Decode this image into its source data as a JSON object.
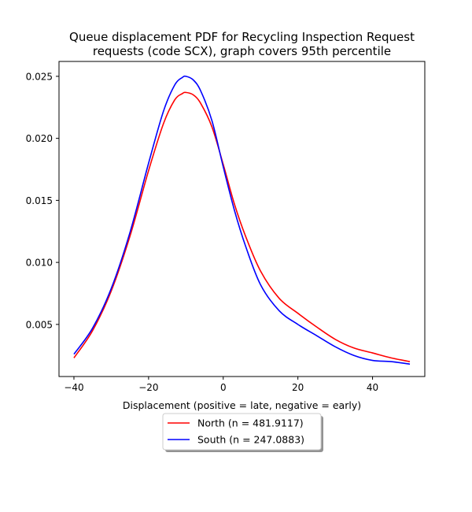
{
  "chart_data": {
    "type": "line",
    "title_line1": "Queue displacement PDF for Recycling Inspection Request",
    "title_line2": "requests (code SCX), graph covers 95th percentile",
    "xlabel": "Displacement (positive = late, negative = early)",
    "ylabel": "",
    "xlim": [
      -44,
      54
    ],
    "ylim": [
      0.0008,
      0.0262
    ],
    "x_ticks": [
      -40,
      -20,
      0,
      20,
      40
    ],
    "x_tick_labels": [
      "−40",
      "−20",
      "0",
      "20",
      "40"
    ],
    "y_ticks": [
      0.005,
      0.01,
      0.015,
      0.02,
      0.025
    ],
    "y_tick_labels": [
      "0.005",
      "0.010",
      "0.015",
      "0.020",
      "0.025"
    ],
    "grid": false,
    "legend_position": "below-center",
    "series": [
      {
        "name": "North (n = 481.9117)",
        "color": "#ff0000",
        "x": [
          -40,
          -35,
          -30,
          -25,
          -20,
          -16,
          -13,
          -11,
          -10,
          -8,
          -6,
          -3,
          0,
          3,
          6,
          10,
          15,
          20,
          25,
          30,
          35,
          40,
          45,
          50
        ],
        "y": [
          0.0023,
          0.0045,
          0.0077,
          0.0121,
          0.0174,
          0.0212,
          0.0231,
          0.0236,
          0.0237,
          0.0235,
          0.0228,
          0.0209,
          0.0179,
          0.0147,
          0.0121,
          0.0093,
          0.0071,
          0.0059,
          0.0048,
          0.0038,
          0.0031,
          0.0027,
          0.0023,
          0.002
        ]
      },
      {
        "name": "South (n = 247.0883)",
        "color": "#0000ff",
        "x": [
          -40,
          -35,
          -30,
          -25,
          -20,
          -16,
          -13,
          -11,
          -10,
          -8,
          -6,
          -3,
          0,
          3,
          6,
          10,
          15,
          20,
          25,
          30,
          35,
          40,
          45,
          50
        ],
        "y": [
          0.0026,
          0.0047,
          0.0079,
          0.0124,
          0.018,
          0.0222,
          0.0243,
          0.0249,
          0.025,
          0.0247,
          0.0238,
          0.0214,
          0.0177,
          0.0142,
          0.0113,
          0.0082,
          0.0061,
          0.005,
          0.0041,
          0.0032,
          0.0025,
          0.0021,
          0.002,
          0.0018
        ]
      }
    ]
  }
}
